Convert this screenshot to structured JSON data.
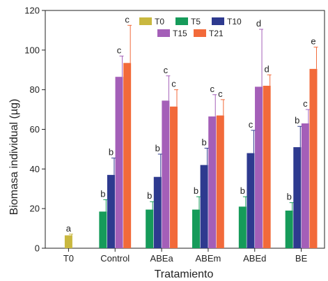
{
  "chart_data": {
    "type": "bar",
    "title": "",
    "xlabel": "Tratamiento",
    "ylabel": "Biomasa individual (µg)",
    "ylim": [
      0,
      120
    ],
    "yticks": [
      0,
      20,
      40,
      60,
      80,
      100,
      120
    ],
    "grid": false,
    "legend_position": "top",
    "categories": [
      "T0",
      "Control",
      "ABEa",
      "ABEm",
      "ABEd",
      "BE"
    ],
    "series": [
      {
        "name": "T0",
        "color": "#c9b83f",
        "values": [
          6.5,
          null,
          null,
          null,
          null,
          null
        ],
        "errors": [
          0.6,
          null,
          null,
          null,
          null,
          null
        ],
        "labels": [
          "a",
          null,
          null,
          null,
          null,
          null
        ]
      },
      {
        "name": "T5",
        "color": "#169b5a",
        "values": [
          null,
          18.5,
          19.5,
          19.5,
          21,
          19
        ],
        "errors": [
          null,
          6,
          4,
          6.5,
          5,
          4
        ],
        "labels": [
          null,
          "b",
          "b",
          "b",
          "b",
          "b"
        ]
      },
      {
        "name": "T10",
        "color": "#2e3a8f",
        "values": [
          null,
          37,
          36,
          42,
          48,
          51
        ],
        "errors": [
          null,
          8.5,
          11.5,
          8.5,
          11.5,
          10.5
        ],
        "labels": [
          null,
          "b",
          "b",
          "b",
          "c",
          "b"
        ]
      },
      {
        "name": "T15",
        "color": "#a45fb8",
        "values": [
          null,
          86.5,
          74.5,
          66.5,
          81.5,
          63
        ],
        "errors": [
          null,
          10.5,
          12.5,
          11,
          29,
          7
        ],
        "labels": [
          null,
          "c",
          "c",
          "c",
          "d",
          "c"
        ]
      },
      {
        "name": "T21",
        "color": "#f26a3a",
        "values": [
          null,
          93.5,
          71.5,
          67,
          82,
          90.5
        ],
        "errors": [
          null,
          19,
          8.5,
          8,
          5.5,
          11
        ],
        "labels": [
          null,
          "c",
          "c",
          "c",
          "d",
          "e"
        ]
      }
    ]
  }
}
